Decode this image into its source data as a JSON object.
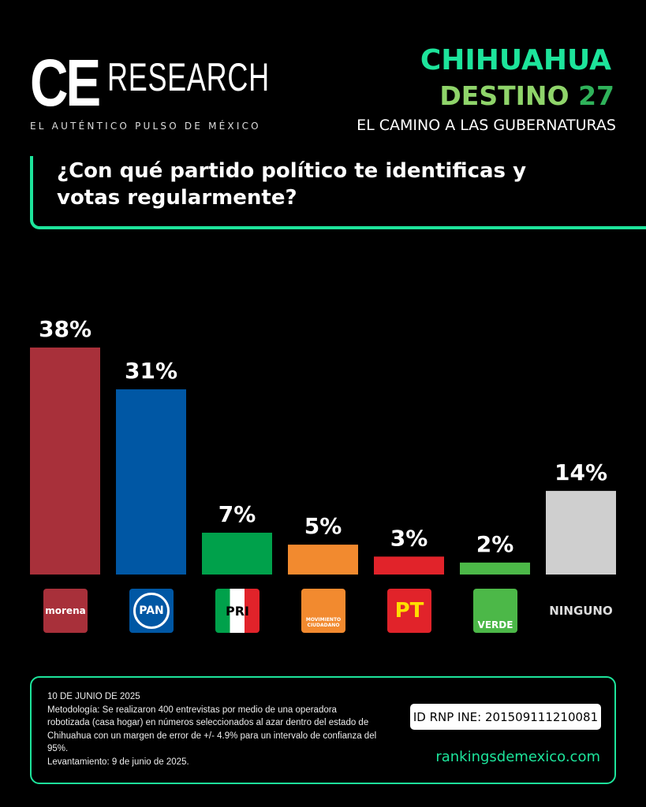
{
  "header": {
    "logo_ce": "CE",
    "logo_research": "RESEARCH",
    "tagline": "EL AUTÉNTICO PULSO DE MÉXICO",
    "state": "CHIHUAHUA",
    "series_title": "DESTINO",
    "series_number": "27",
    "subtitle": "EL CAMINO A LAS GUBERNATURAS"
  },
  "question": "¿Con qué partido político te identificas y votas regularmente?",
  "chart_data": {
    "type": "bar",
    "categories": [
      "morena",
      "PAN",
      "PRI",
      "Movimiento Ciudadano",
      "PT",
      "VERDE",
      "NINGUNO"
    ],
    "values": [
      38,
      31,
      7,
      5,
      3,
      2,
      14
    ],
    "data_labels": [
      "38%",
      "31%",
      "7%",
      "5%",
      "3%",
      "2%",
      "14%"
    ],
    "colors": [
      "#a8303a",
      "#0057a4",
      "#00a14b",
      "#f28a2f",
      "#e1232a",
      "#4cb848",
      "#cfcfcf"
    ],
    "ylim": [
      0,
      40
    ],
    "grid": false
  },
  "logos": {
    "morena": "morena",
    "pan": "PAN",
    "pri": "PRI",
    "mc": "MOVIMIENTO CIUDADANO",
    "pt": "PT",
    "verde": "VERDE",
    "ninguno": "NINGUNO"
  },
  "footer": {
    "date": "10 DE JUNIO DE 2025",
    "methodology": "Metodología: Se realizaron 400 entrevistas por medio de una operadora robotizada (casa hogar) en números seleccionados al azar dentro del estado de Chihuahua con un margen de error de +/- 4.9% para un intervalo de confianza del 95%.",
    "fieldwork": "Levantamiento: 9 de junio de 2025.",
    "rnp": "ID RNP INE: 201509111210081",
    "website": "rankingsdemexico.com"
  }
}
